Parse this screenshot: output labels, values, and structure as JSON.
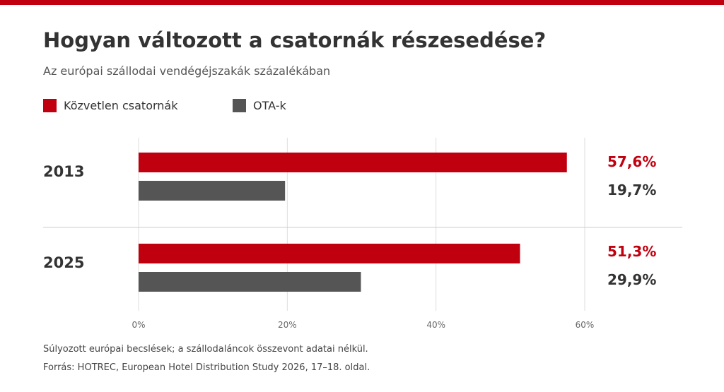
{
  "title": "Hogyan változott a csatornák részesedése?",
  "subtitle": "Az európai szállodai vendégéjszakák százalékában",
  "footnote": "Súlyozott európai becslések; a szállodaláncok összevont adatai nélkül.",
  "source": "Forrás: HOTREC, European Hotel Distribution Study 2026, 17–18. oldal.",
  "colors": {
    "accent": "#c1000f",
    "direct": "#c1000f",
    "ota": "#555555",
    "text": "#333333",
    "grid": "#dddddd"
  },
  "chart_data": {
    "type": "bar",
    "orientation": "horizontal",
    "categories": [
      "2013",
      "2025"
    ],
    "series": [
      {
        "name": "Közvetlen csatornák",
        "values": [
          57.6,
          51.3
        ],
        "labels": [
          "57,6%",
          "51,3%"
        ],
        "color": "#c1000f"
      },
      {
        "name": "OTA-k",
        "values": [
          19.7,
          29.9
        ],
        "labels": [
          "19,7%",
          "29,9%"
        ],
        "color": "#555555"
      }
    ],
    "x_ticks": [
      0,
      20,
      40,
      60
    ],
    "x_tick_labels": [
      "0%",
      "20%",
      "40%",
      "60%"
    ],
    "xlim": [
      0,
      60
    ],
    "grid": true,
    "legend": "top-left"
  }
}
